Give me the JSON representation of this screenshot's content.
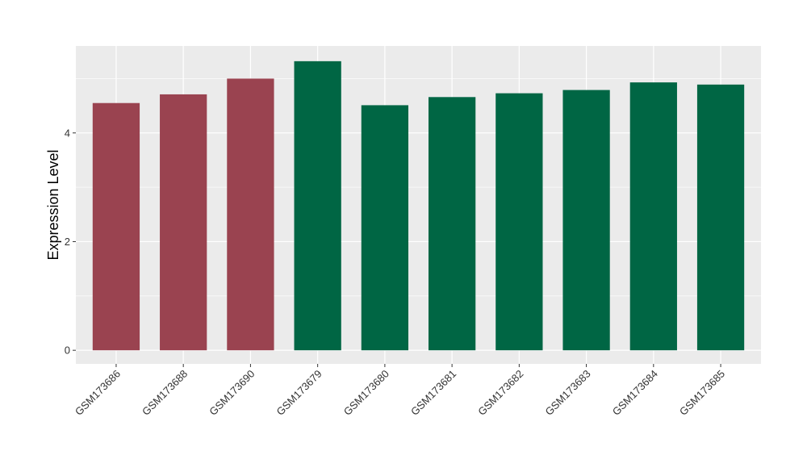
{
  "chart_data": {
    "type": "bar",
    "title": "",
    "xlabel": "",
    "ylabel": "Expression Level",
    "categories": [
      "GSM173686",
      "GSM173688",
      "GSM173690",
      "GSM173679",
      "GSM173680",
      "GSM173681",
      "GSM173682",
      "GSM173683",
      "GSM173684",
      "GSM173685"
    ],
    "values": [
      4.55,
      4.71,
      5.0,
      5.32,
      4.51,
      4.66,
      4.73,
      4.79,
      4.93,
      4.89
    ],
    "bar_colors": [
      "#9a4350",
      "#9a4350",
      "#9a4350",
      "#006644",
      "#006644",
      "#006644",
      "#006644",
      "#006644",
      "#006644",
      "#006644"
    ],
    "ylim": [
      -0.25,
      5.6
    ],
    "yticks": [
      0,
      2,
      4
    ],
    "grid": true,
    "panel_background": "#ebebeb",
    "gridline_color": "#ffffff",
    "legend": "none"
  }
}
